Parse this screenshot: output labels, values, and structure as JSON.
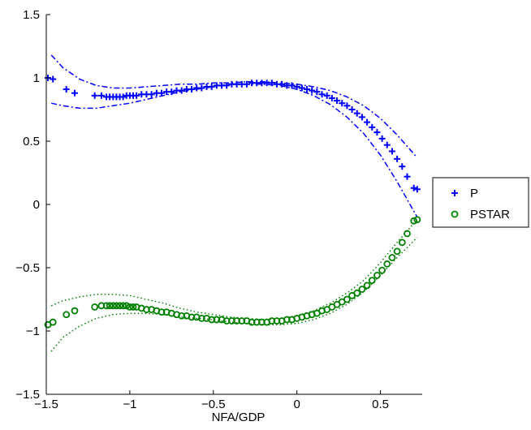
{
  "chart_data": {
    "type": "scatter",
    "xlabel": "NFA/GDP",
    "ylabel": "",
    "xlim": [
      -1.5,
      0.75
    ],
    "ylim": [
      -1.5,
      1.5
    ],
    "xticks": [
      -1.5,
      -1,
      -0.5,
      0,
      0.5
    ],
    "yticks": [
      -1.5,
      -1,
      -0.5,
      0,
      0.5,
      1,
      1.5
    ],
    "xtick_labels": [
      "−1.5",
      "−1",
      "−0.5",
      "0",
      "0.5"
    ],
    "ytick_labels": [
      "−1.5",
      "−1",
      "−0.5",
      "0",
      "0.5",
      "1",
      "1.5"
    ],
    "grid": false,
    "legend": {
      "placement": "outside-right",
      "entries": [
        "P",
        "PSTAR"
      ]
    },
    "colors": {
      "P": "#0000ff",
      "PSTAR": "#008000",
      "axis": "#000000"
    },
    "series": [
      {
        "name": "P",
        "marker": "plus",
        "color": "#0000ff",
        "x": [
          -1.49,
          -1.46,
          -1.38,
          -1.33,
          -1.21,
          -1.17,
          -1.14,
          -1.12,
          -1.1,
          -1.08,
          -1.06,
          -1.04,
          -1.02,
          -1.0,
          -0.98,
          -0.96,
          -0.93,
          -0.9,
          -0.87,
          -0.84,
          -0.81,
          -0.78,
          -0.75,
          -0.72,
          -0.69,
          -0.66,
          -0.63,
          -0.6,
          -0.57,
          -0.54,
          -0.51,
          -0.48,
          -0.45,
          -0.42,
          -0.39,
          -0.36,
          -0.33,
          -0.3,
          -0.27,
          -0.24,
          -0.21,
          -0.18,
          -0.15,
          -0.12,
          -0.09,
          -0.06,
          -0.03,
          0.0,
          0.03,
          0.06,
          0.09,
          0.12,
          0.15,
          0.18,
          0.21,
          0.24,
          0.27,
          0.3,
          0.33,
          0.36,
          0.39,
          0.42,
          0.45,
          0.48,
          0.51,
          0.54,
          0.57,
          0.6,
          0.63,
          0.66,
          0.7,
          0.72
        ],
        "y": [
          1.0,
          0.99,
          0.91,
          0.88,
          0.86,
          0.86,
          0.85,
          0.85,
          0.85,
          0.85,
          0.85,
          0.85,
          0.86,
          0.86,
          0.86,
          0.86,
          0.87,
          0.87,
          0.87,
          0.88,
          0.88,
          0.89,
          0.89,
          0.9,
          0.9,
          0.91,
          0.91,
          0.92,
          0.92,
          0.93,
          0.93,
          0.94,
          0.94,
          0.94,
          0.95,
          0.95,
          0.95,
          0.95,
          0.96,
          0.96,
          0.96,
          0.96,
          0.96,
          0.95,
          0.95,
          0.94,
          0.94,
          0.93,
          0.92,
          0.91,
          0.9,
          0.89,
          0.87,
          0.86,
          0.84,
          0.82,
          0.8,
          0.78,
          0.75,
          0.72,
          0.69,
          0.65,
          0.61,
          0.57,
          0.52,
          0.47,
          0.42,
          0.36,
          0.3,
          0.22,
          0.13,
          0.12
        ]
      },
      {
        "name": "PSTAR",
        "marker": "circle",
        "color": "#008000",
        "x": [
          -1.49,
          -1.46,
          -1.38,
          -1.33,
          -1.21,
          -1.17,
          -1.14,
          -1.12,
          -1.1,
          -1.08,
          -1.06,
          -1.04,
          -1.02,
          -1.0,
          -0.98,
          -0.96,
          -0.93,
          -0.9,
          -0.87,
          -0.84,
          -0.81,
          -0.78,
          -0.75,
          -0.72,
          -0.69,
          -0.66,
          -0.63,
          -0.6,
          -0.57,
          -0.54,
          -0.51,
          -0.48,
          -0.45,
          -0.42,
          -0.39,
          -0.36,
          -0.33,
          -0.3,
          -0.27,
          -0.24,
          -0.21,
          -0.18,
          -0.15,
          -0.12,
          -0.09,
          -0.06,
          -0.03,
          0.0,
          0.03,
          0.06,
          0.09,
          0.12,
          0.15,
          0.18,
          0.21,
          0.24,
          0.27,
          0.3,
          0.33,
          0.36,
          0.39,
          0.42,
          0.45,
          0.48,
          0.51,
          0.54,
          0.57,
          0.6,
          0.63,
          0.66,
          0.7,
          0.72
        ],
        "y": [
          -0.95,
          -0.93,
          -0.87,
          -0.84,
          -0.81,
          -0.8,
          -0.8,
          -0.8,
          -0.8,
          -0.8,
          -0.8,
          -0.8,
          -0.8,
          -0.81,
          -0.81,
          -0.81,
          -0.82,
          -0.83,
          -0.83,
          -0.84,
          -0.85,
          -0.85,
          -0.86,
          -0.87,
          -0.88,
          -0.88,
          -0.89,
          -0.89,
          -0.9,
          -0.9,
          -0.91,
          -0.91,
          -0.91,
          -0.92,
          -0.92,
          -0.92,
          -0.92,
          -0.92,
          -0.93,
          -0.93,
          -0.93,
          -0.93,
          -0.92,
          -0.92,
          -0.92,
          -0.91,
          -0.91,
          -0.9,
          -0.89,
          -0.88,
          -0.87,
          -0.86,
          -0.84,
          -0.83,
          -0.81,
          -0.79,
          -0.77,
          -0.75,
          -0.72,
          -0.7,
          -0.67,
          -0.64,
          -0.6,
          -0.56,
          -0.52,
          -0.47,
          -0.42,
          -0.37,
          -0.3,
          -0.23,
          -0.13,
          -0.12
        ]
      }
    ],
    "bands": [
      {
        "series": "P",
        "style": "dashdot",
        "color": "#0000ff",
        "x": [
          -1.47,
          -1.4,
          -1.3,
          -1.2,
          -1.1,
          -1.0,
          -0.9,
          -0.8,
          -0.7,
          -0.6,
          -0.5,
          -0.4,
          -0.3,
          -0.2,
          -0.1,
          0.0,
          0.1,
          0.2,
          0.3,
          0.4,
          0.5,
          0.6,
          0.72
        ],
        "upper": [
          1.18,
          1.08,
          0.99,
          0.94,
          0.92,
          0.92,
          0.93,
          0.94,
          0.95,
          0.95,
          0.96,
          0.96,
          0.97,
          0.97,
          0.96,
          0.95,
          0.93,
          0.9,
          0.85,
          0.78,
          0.68,
          0.55,
          0.37
        ],
        "lower": [
          0.8,
          0.78,
          0.76,
          0.76,
          0.78,
          0.8,
          0.83,
          0.86,
          0.89,
          0.91,
          0.93,
          0.95,
          0.95,
          0.95,
          0.94,
          0.91,
          0.86,
          0.79,
          0.69,
          0.56,
          0.39,
          0.18,
          -0.1
        ]
      },
      {
        "series": "PSTAR",
        "style": "dotted",
        "color": "#008000",
        "x": [
          -1.47,
          -1.4,
          -1.3,
          -1.2,
          -1.1,
          -1.0,
          -0.9,
          -0.8,
          -0.7,
          -0.6,
          -0.5,
          -0.4,
          -0.3,
          -0.2,
          -0.1,
          0.0,
          0.1,
          0.2,
          0.3,
          0.4,
          0.5,
          0.6,
          0.72
        ],
        "upper": [
          -0.8,
          -0.76,
          -0.73,
          -0.71,
          -0.71,
          -0.72,
          -0.75,
          -0.78,
          -0.82,
          -0.85,
          -0.87,
          -0.89,
          -0.9,
          -0.91,
          -0.9,
          -0.88,
          -0.84,
          -0.78,
          -0.7,
          -0.6,
          -0.46,
          -0.3,
          -0.12
        ],
        "lower": [
          -1.16,
          -1.05,
          -0.96,
          -0.9,
          -0.87,
          -0.86,
          -0.86,
          -0.87,
          -0.89,
          -0.9,
          -0.91,
          -0.93,
          -0.94,
          -0.95,
          -0.95,
          -0.94,
          -0.91,
          -0.86,
          -0.79,
          -0.69,
          -0.56,
          -0.42,
          -0.26
        ]
      }
    ]
  }
}
